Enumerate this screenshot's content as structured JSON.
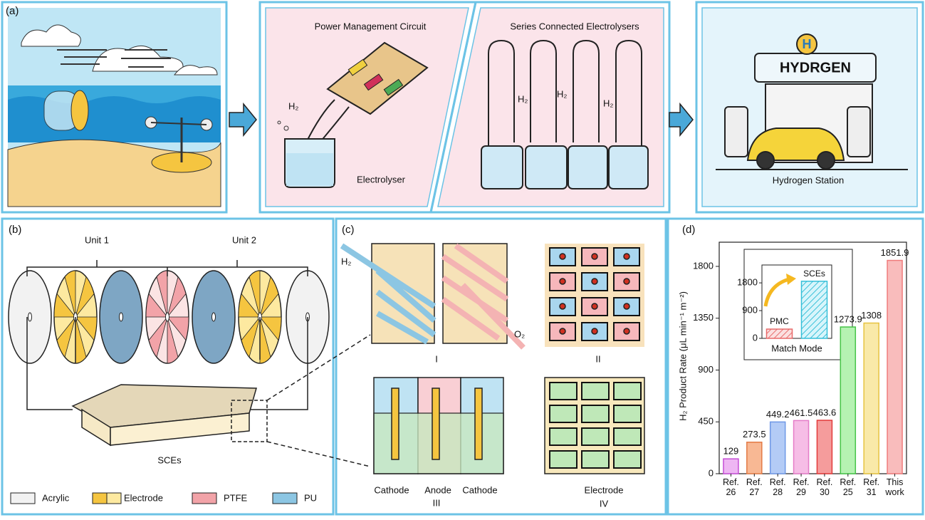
{
  "panel_a": {
    "label": "(a)",
    "circuit_title": "Power Management Circuit",
    "h2": "H₂",
    "electrolyser": "Electrolyser",
    "series_title": "Series Connected Electrolysers",
    "series_h2": [
      "H₂",
      "H₂",
      "H₂"
    ],
    "station_logo": "H",
    "station_sign": "HYDRGEN",
    "station": "Hydrogen  Station"
  },
  "panel_b": {
    "label": "(b)",
    "units": [
      "Unit 1",
      "Unit 2"
    ],
    "sces": "SCEs",
    "legend": [
      "Acrylic",
      "Electrode",
      "PTFE",
      "PU"
    ]
  },
  "panel_c": {
    "label": "(c)",
    "h2": "H₂",
    "o2": "O₂",
    "numerals": [
      "I",
      "II",
      "III",
      "IV"
    ],
    "cell_labels": [
      "Cathode",
      "Anode",
      "Cathode"
    ],
    "electrode": "Electrode"
  },
  "panel_d": {
    "label": "(d)"
  },
  "chart_data": [
    {
      "type": "bar",
      "y_label": "H₂ Product Rate (μL min⁻¹ m⁻²)",
      "categories": [
        "Ref. 26",
        "Ref. 27",
        "Ref. 28",
        "Ref. 29",
        "Ref. 30",
        "Ref. 25",
        "Ref. 31",
        "This work"
      ],
      "values": [
        129,
        273.5,
        449.2,
        461.5,
        463.6,
        1273.9,
        1308,
        1851.9
      ],
      "colors": [
        "#eeb6f3",
        "#f8b894",
        "#b3cbf6",
        "#f6bde6",
        "#f59c9c",
        "#b5f2b2",
        "#f9e9a8",
        "#f9bcbc"
      ],
      "edge_colors": [
        "#c64fd6",
        "#e37a45",
        "#6e98e6",
        "#e57cc8",
        "#e23a3a",
        "#45c447",
        "#e6c340",
        "#f07b7b"
      ],
      "ylim": [
        0,
        2010
      ],
      "yticks": [
        0,
        450,
        900,
        1350,
        1800
      ]
    },
    {
      "type": "hatched-bar",
      "x_label": "Match Mode",
      "categories": [
        "PMC",
        "SCEs"
      ],
      "values": [
        300,
        1851.9
      ],
      "colors": [
        "#e86a6a",
        "#36bfd8"
      ],
      "ylim": [
        0,
        2380
      ],
      "yticks": [
        0,
        900,
        1800
      ]
    }
  ]
}
